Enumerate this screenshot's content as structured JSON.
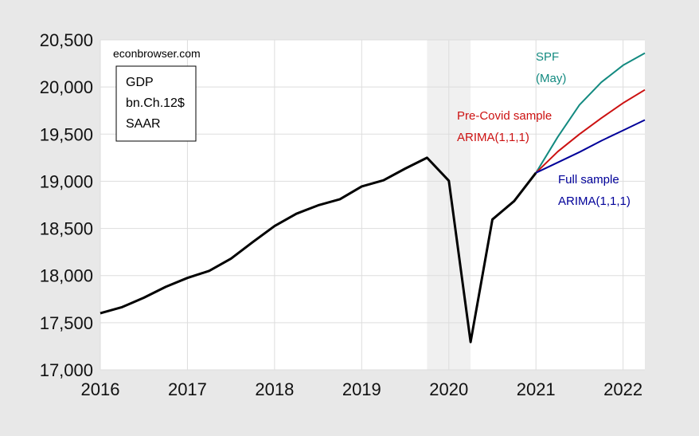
{
  "source": "econbrowser.com",
  "legend_box": [
    "GDP",
    "bn.Ch.12$",
    "SAAR"
  ],
  "chart_data": {
    "type": "line",
    "title": "",
    "xlabel": "",
    "ylabel": "",
    "xlim": [
      2016,
      2022.25
    ],
    "ylim": [
      17000,
      20500
    ],
    "x_ticks": [
      2016,
      2017,
      2018,
      2019,
      2020,
      2021,
      2022
    ],
    "y_ticks": [
      17000,
      17500,
      18000,
      18500,
      19000,
      19500,
      20000,
      20500
    ],
    "y_tick_labels": [
      "17,000",
      "17,500",
      "18,000",
      "18,500",
      "19,000",
      "19,500",
      "20,000",
      "20,500"
    ],
    "grid": true,
    "recession_shading": [
      2019.75,
      2020.25
    ],
    "series": [
      {
        "name": "",
        "color": "#000000",
        "x": [
          2016.0,
          2016.25,
          2016.5,
          2016.75,
          2017.0,
          2017.25,
          2017.5,
          2017.75,
          2018.0,
          2018.25,
          2018.5,
          2018.75,
          2019.0,
          2019.25,
          2019.5,
          2019.75,
          2020.0,
          2020.25,
          2020.5,
          2020.75,
          2021.0
        ],
        "values": [
          17600,
          17665,
          17765,
          17880,
          17975,
          18050,
          18180,
          18355,
          18525,
          18655,
          18745,
          18810,
          18945,
          19010,
          19135,
          19250,
          19005,
          17295,
          18595,
          18790,
          19090
        ]
      },
      {
        "name": "SPF (May)",
        "color": "#138a80",
        "x": [
          2021.0,
          2021.25,
          2021.5,
          2021.75,
          2022.0,
          2022.25
        ],
        "values": [
          19090,
          19470,
          19810,
          20050,
          20230,
          20360
        ]
      },
      {
        "name": "Pre-Covid sample ARIMA(1,1,1)",
        "color": "#cc1111",
        "x": [
          2021.0,
          2021.25,
          2021.5,
          2021.75,
          2022.0,
          2022.25
        ],
        "values": [
          19090,
          19315,
          19500,
          19670,
          19830,
          19970
        ]
      },
      {
        "name": "Full sample ARIMA(1,1,1)",
        "color": "#000099",
        "x": [
          2021.0,
          2021.25,
          2021.5,
          2021.75,
          2022.0,
          2022.25
        ],
        "values": [
          19090,
          19200,
          19310,
          19430,
          19540,
          19650
        ]
      }
    ],
    "annotations": [
      {
        "lines": [
          "SPF",
          "(May)"
        ],
        "color": "#138a80"
      },
      {
        "lines": [
          "Pre-Covid sample",
          "ARIMA(1,1,1)"
        ],
        "color": "#cc1111"
      },
      {
        "lines": [
          "Full sample",
          "ARIMA(1,1,1)"
        ],
        "color": "#000099"
      }
    ]
  }
}
